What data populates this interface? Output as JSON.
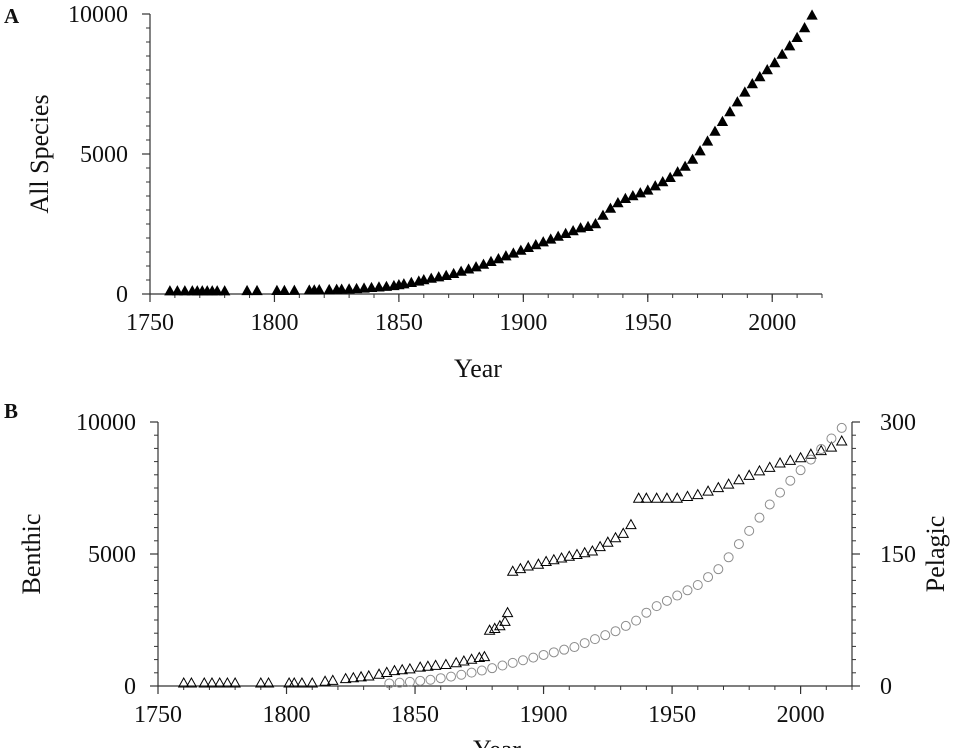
{
  "figure": {
    "panel_a_letter": "A",
    "panel_b_letter": "B"
  },
  "chart_data": [
    {
      "type": "scatter",
      "panel": "A",
      "title": "",
      "xlabel": "Year",
      "ylabel": "All Species",
      "xlim": [
        1750,
        2020
      ],
      "ylim": [
        0,
        10000
      ],
      "x_ticks": [
        1750,
        1800,
        1850,
        1900,
        1950,
        2000
      ],
      "y_ticks": [
        0,
        5000,
        10000
      ],
      "grid": false,
      "series": [
        {
          "marker": "filled-triangle",
          "color": "#000000",
          "x": [
            1758,
            1761,
            1764,
            1767,
            1769,
            1771,
            1773,
            1775,
            1777,
            1780,
            1789,
            1793,
            1801,
            1804,
            1808,
            1814,
            1816,
            1818,
            1822,
            1825,
            1827,
            1830,
            1833,
            1836,
            1839,
            1842,
            1845,
            1848,
            1850,
            1852,
            1855,
            1858,
            1860,
            1863,
            1866,
            1869,
            1872,
            1875,
            1878,
            1881,
            1884,
            1887,
            1890,
            1893,
            1896,
            1899,
            1902,
            1905,
            1908,
            1911,
            1914,
            1917,
            1920,
            1923,
            1926,
            1929,
            1932,
            1935,
            1938,
            1941,
            1944,
            1947,
            1950,
            1953,
            1956,
            1959,
            1962,
            1965,
            1968,
            1971,
            1974,
            1977,
            1980,
            1983,
            1986,
            1989,
            1992,
            1995,
            1998,
            2001,
            2004,
            2007,
            2010,
            2013,
            2016
          ],
          "y": [
            0,
            0,
            0,
            0,
            0,
            0,
            0,
            0,
            0,
            0,
            10,
            10,
            15,
            15,
            20,
            30,
            35,
            40,
            45,
            55,
            60,
            70,
            80,
            100,
            120,
            140,
            160,
            190,
            220,
            250,
            300,
            350,
            400,
            450,
            500,
            550,
            620,
            700,
            780,
            860,
            950,
            1050,
            1150,
            1250,
            1350,
            1450,
            1550,
            1650,
            1750,
            1850,
            1950,
            2050,
            2150,
            2250,
            2300,
            2400,
            2700,
            2950,
            3150,
            3300,
            3400,
            3500,
            3600,
            3750,
            3900,
            4050,
            4250,
            4450,
            4700,
            5000,
            5350,
            5700,
            6050,
            6400,
            6750,
            7100,
            7400,
            7650,
            7900,
            8150,
            8450,
            8750,
            9050,
            9400,
            9850
          ]
        }
      ]
    },
    {
      "type": "scatter",
      "panel": "B",
      "title": "",
      "xlabel": "Year",
      "ylabel": "Benthic",
      "y2label": "Pelagic",
      "xlim": [
        1750,
        2020
      ],
      "ylim": [
        0,
        10000
      ],
      "y2lim": [
        0,
        300
      ],
      "x_ticks": [
        1750,
        1800,
        1850,
        1900,
        1950,
        2000
      ],
      "y_ticks": [
        0,
        5000,
        10000
      ],
      "y2_ticks": [
        0,
        150,
        300
      ],
      "grid": false,
      "series": [
        {
          "axis": "right",
          "marker": "open-triangle",
          "color": "#000000",
          "x": [
            1760,
            1763,
            1768,
            1771,
            1774,
            1777,
            1780,
            1790,
            1793,
            1801,
            1803,
            1806,
            1810,
            1815,
            1818,
            1823,
            1826,
            1829,
            1832,
            1836,
            1839,
            1842,
            1845,
            1848,
            1852,
            1855,
            1858,
            1862,
            1866,
            1869,
            1872,
            1875,
            1877,
            1879,
            1881,
            1883,
            1885,
            1886,
            1888,
            1891,
            1894,
            1898,
            1901,
            1904,
            1907,
            1910,
            1913,
            1916,
            1919,
            1922,
            1925,
            1928,
            1931,
            1934,
            1937,
            1940,
            1944,
            1948,
            1952,
            1956,
            1960,
            1964,
            1968,
            1972,
            1976,
            1980,
            1984,
            1988,
            1992,
            1996,
            2000,
            2004,
            2008,
            2012,
            2016
          ],
          "y": [
            0,
            0,
            0,
            0,
            0,
            0,
            0,
            0,
            0,
            0,
            0,
            0,
            0,
            2,
            3,
            5,
            6,
            7,
            8,
            10,
            12,
            14,
            15,
            16,
            18,
            19,
            20,
            21,
            23,
            25,
            27,
            29,
            30,
            60,
            62,
            65,
            70,
            80,
            127,
            130,
            133,
            135,
            138,
            140,
            142,
            144,
            146,
            148,
            150,
            155,
            160,
            165,
            170,
            180,
            210,
            210,
            210,
            210,
            210,
            212,
            214,
            218,
            222,
            226,
            231,
            236,
            241,
            245,
            250,
            253,
            256,
            260,
            264,
            268,
            275
          ]
        },
        {
          "axis": "left",
          "marker": "open-circle",
          "color": "#8c8c8c",
          "x": [
            1840,
            1844,
            1848,
            1852,
            1856,
            1860,
            1864,
            1868,
            1872,
            1876,
            1880,
            1884,
            1888,
            1892,
            1896,
            1900,
            1904,
            1908,
            1912,
            1916,
            1920,
            1924,
            1928,
            1932,
            1936,
            1940,
            1944,
            1948,
            1952,
            1956,
            1960,
            1964,
            1968,
            1972,
            1976,
            1980,
            1984,
            1988,
            1992,
            1996,
            2000,
            2004,
            2008,
            2012,
            2016
          ],
          "y": [
            20,
            50,
            80,
            120,
            160,
            220,
            280,
            350,
            430,
            510,
            600,
            700,
            800,
            900,
            1000,
            1100,
            1200,
            1300,
            1400,
            1550,
            1700,
            1850,
            2000,
            2200,
            2400,
            2700,
            2950,
            3150,
            3350,
            3550,
            3750,
            4050,
            4350,
            4800,
            5300,
            5800,
            6300,
            6800,
            7250,
            7700,
            8100,
            8500,
            8900,
            9300,
            9700
          ]
        }
      ]
    }
  ]
}
